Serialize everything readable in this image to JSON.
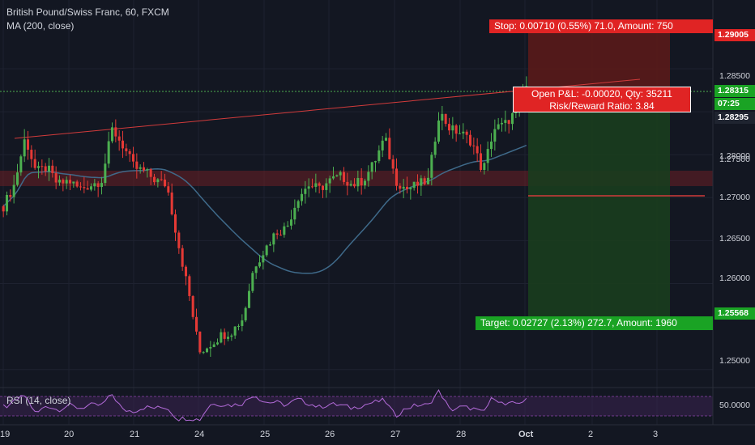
{
  "header": {
    "symbol": "British Pound/Swiss Franc, 60, FXCM",
    "indicator": "MA (200, close)"
  },
  "rsi": {
    "label": "RSI (14, close)",
    "value_label": "50.0000"
  },
  "y_axis_ticks": [
    "1.28500",
    "1.28000",
    "1.27500",
    "1.27000",
    "1.26500",
    "1.26000",
    "1.25000"
  ],
  "price_tags": {
    "stop": "1.29005",
    "current": "1.28315",
    "countdown": "07:25",
    "last": "1.28295",
    "target": "1.25568"
  },
  "x_axis_labels": [
    "19",
    "20",
    "21",
    "24",
    "25",
    "26",
    "27",
    "28",
    "Oct",
    "2",
    "3"
  ],
  "position": {
    "stop_label": "Stop: 0.00710 (0.55%) 71.0, Amount: 750",
    "pnl_label": "Open P&L: -0.00020, Qty: 35211",
    "rr_label": "Risk/Reward Ratio: 3.84",
    "target_label": "Target: 0.02727 (2.13%) 272.7, Amount: 1960"
  },
  "colors": {
    "background": "#131722",
    "bull": "#4caf50",
    "bear": "#e53935",
    "ma": "#3f6a8a",
    "rsi": "#8e44ad",
    "stop_zone": "#5a1a1a",
    "target_zone": "#1a3d1e",
    "stop_banner": "#e02424",
    "target_banner": "#1aa324"
  },
  "chart_data": {
    "type": "candlestick",
    "symbol": "GBPCHF",
    "timeframe": "60",
    "ylim": [
      1.248,
      1.293
    ],
    "x_labels": [
      "19",
      "20",
      "21",
      "24",
      "25",
      "26",
      "27",
      "28",
      "Oct",
      "2",
      "3"
    ],
    "moving_average": "MA (200, close)",
    "candles_close_approx": [
      1.269,
      1.2715,
      1.277,
      1.273,
      1.2735,
      1.2715,
      1.272,
      1.271,
      1.2715,
      1.272,
      1.278,
      1.276,
      1.2735,
      1.273,
      1.272,
      1.2715,
      1.265,
      1.259,
      1.252,
      1.253,
      1.254,
      1.2545,
      1.256,
      1.262,
      1.264,
      1.266,
      1.2665,
      1.27,
      1.2715,
      1.271,
      1.272,
      1.2725,
      1.2715,
      1.272,
      1.274,
      1.277,
      1.272,
      1.271,
      1.2715,
      1.272,
      1.28,
      1.278,
      1.2775,
      1.2765,
      1.273,
      1.278,
      1.2785,
      1.28,
      1.283
    ],
    "resistance_line": [
      [
        19.2,
        1.2775
      ],
      [
        30.5,
        1.285
      ]
    ],
    "support_zone": [
      1.2715,
      1.2735
    ],
    "trade": {
      "entry": 1.28295,
      "stop": 1.29005,
      "target": 1.25568,
      "open_pnl": -0.0002,
      "qty": 35211,
      "risk_reward": 3.84
    },
    "rsi": {
      "label": "RSI (14, close)",
      "level": 50
    }
  }
}
